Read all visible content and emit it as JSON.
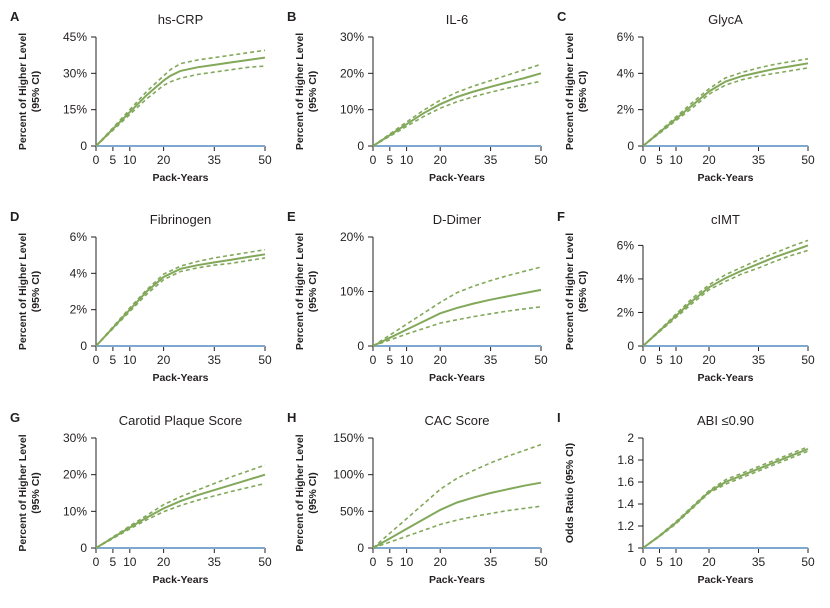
{
  "colors": {
    "curve": "#82a85a",
    "baseline": "#7fa8cf"
  },
  "chart_data": [
    {
      "panel": "A",
      "type": "line",
      "title": "hs-CRP",
      "xlabel": "Pack-Years",
      "ylabel": "Percent of Higher Level (95% CI)",
      "xticks": [
        0,
        5,
        10,
        20,
        35,
        50
      ],
      "xlim": [
        0,
        50
      ],
      "yticks": [
        0,
        15,
        30,
        45
      ],
      "ytick_labels": [
        "0",
        "15%",
        "30%",
        "45%"
      ],
      "ylim": [
        0,
        45
      ],
      "baseline": 0,
      "x": [
        0,
        5,
        10,
        15,
        20,
        22,
        25,
        30,
        35,
        40,
        45,
        50
      ],
      "series": [
        {
          "role": "estimate",
          "values": [
            0,
            7,
            14,
            21,
            27,
            29,
            31,
            32.5,
            33.5,
            34.5,
            35.5,
            36.5
          ]
        },
        {
          "role": "upper_ci",
          "values": [
            0,
            7.5,
            15,
            22.5,
            29,
            31.5,
            34,
            35.5,
            36.5,
            37.5,
            38.5,
            39.5
          ]
        },
        {
          "role": "lower_ci",
          "values": [
            0,
            6.5,
            13,
            19.5,
            25,
            26.5,
            28,
            29.5,
            30.5,
            31.5,
            32.5,
            33
          ]
        }
      ]
    },
    {
      "panel": "B",
      "type": "line",
      "title": "IL-6",
      "xlabel": "Pack-Years",
      "ylabel": "Percent of Higher Level (95% CI)",
      "xticks": [
        0,
        5,
        10,
        20,
        35,
        50
      ],
      "xlim": [
        0,
        50
      ],
      "yticks": [
        0,
        10,
        20,
        30
      ],
      "ytick_labels": [
        "0",
        "10%",
        "20%",
        "30%"
      ],
      "ylim": [
        0,
        30
      ],
      "baseline": 0,
      "x": [
        0,
        5,
        10,
        15,
        20,
        25,
        30,
        35,
        40,
        45,
        50
      ],
      "series": [
        {
          "role": "estimate",
          "values": [
            0,
            3,
            6,
            9,
            11.5,
            13.5,
            15,
            16.3,
            17.5,
            18.7,
            20
          ]
        },
        {
          "role": "upper_ci",
          "values": [
            0,
            3.3,
            6.6,
            9.8,
            12.6,
            14.8,
            16.5,
            18,
            19.5,
            21,
            22.5
          ]
        },
        {
          "role": "lower_ci",
          "values": [
            0,
            2.7,
            5.4,
            8.1,
            10.4,
            12.2,
            13.6,
            14.8,
            15.9,
            16.9,
            17.8
          ]
        }
      ]
    },
    {
      "panel": "C",
      "type": "line",
      "title": "GlycA",
      "xlabel": "Pack-Years",
      "ylabel": "Percent of Higher Level (95% CI)",
      "xticks": [
        0,
        5,
        10,
        20,
        35,
        50
      ],
      "xlim": [
        0,
        50
      ],
      "yticks": [
        0,
        2,
        4,
        6
      ],
      "ytick_labels": [
        "0",
        "2%",
        "4%",
        "6%"
      ],
      "ylim": [
        0,
        6
      ],
      "baseline": 0,
      "x": [
        0,
        5,
        10,
        15,
        20,
        25,
        30,
        35,
        40,
        45,
        50
      ],
      "series": [
        {
          "role": "estimate",
          "values": [
            0,
            0.75,
            1.5,
            2.25,
            3,
            3.55,
            3.85,
            4.05,
            4.25,
            4.4,
            4.55
          ]
        },
        {
          "role": "upper_ci",
          "values": [
            0,
            0.8,
            1.6,
            2.4,
            3.15,
            3.75,
            4.05,
            4.3,
            4.5,
            4.65,
            4.8
          ]
        },
        {
          "role": "lower_ci",
          "values": [
            0,
            0.7,
            1.4,
            2.1,
            2.85,
            3.35,
            3.65,
            3.85,
            4,
            4.15,
            4.3
          ]
        }
      ]
    },
    {
      "panel": "D",
      "type": "line",
      "title": "Fibrinogen",
      "xlabel": "Pack-Years",
      "ylabel": "Percent of Higher Level (95% CI)",
      "xticks": [
        0,
        5,
        10,
        20,
        35,
        50
      ],
      "xlim": [
        0,
        50
      ],
      "yticks": [
        0,
        2,
        4,
        6
      ],
      "ytick_labels": [
        "0",
        "2%",
        "4%",
        "6%"
      ],
      "ylim": [
        0,
        6
      ],
      "baseline": 0,
      "x": [
        0,
        5,
        10,
        15,
        20,
        25,
        30,
        35,
        40,
        45,
        50
      ],
      "series": [
        {
          "role": "estimate",
          "values": [
            0,
            1,
            2,
            3,
            3.8,
            4.25,
            4.45,
            4.6,
            4.75,
            4.9,
            5.05
          ]
        },
        {
          "role": "upper_ci",
          "values": [
            0,
            1.05,
            2.1,
            3.1,
            3.95,
            4.4,
            4.65,
            4.85,
            5,
            5.15,
            5.3
          ]
        },
        {
          "role": "lower_ci",
          "values": [
            0,
            0.95,
            1.9,
            2.85,
            3.65,
            4.1,
            4.3,
            4.45,
            4.55,
            4.7,
            4.85
          ]
        }
      ]
    },
    {
      "panel": "E",
      "type": "line",
      "title": "D-Dimer",
      "xlabel": "Pack-Years",
      "ylabel": "Percent of Higher Level (95% CI)",
      "xticks": [
        0,
        5,
        10,
        20,
        35,
        50
      ],
      "xlim": [
        0,
        50
      ],
      "yticks": [
        0,
        10,
        20
      ],
      "ytick_labels": [
        "0",
        "10%",
        "20%"
      ],
      "ylim": [
        0,
        20
      ],
      "baseline": 0,
      "x": [
        0,
        5,
        10,
        15,
        20,
        25,
        30,
        35,
        40,
        45,
        50
      ],
      "series": [
        {
          "role": "estimate",
          "values": [
            0,
            1.5,
            3,
            4.5,
            6,
            7,
            7.8,
            8.5,
            9.1,
            9.7,
            10.3
          ]
        },
        {
          "role": "upper_ci",
          "values": [
            0,
            2,
            4,
            6,
            8,
            9.8,
            11,
            12,
            12.9,
            13.7,
            14.5
          ]
        },
        {
          "role": "lower_ci",
          "values": [
            0,
            1.1,
            2.2,
            3.2,
            4.2,
            4.8,
            5.4,
            5.9,
            6.4,
            6.8,
            7.2
          ]
        }
      ]
    },
    {
      "panel": "F",
      "type": "line",
      "title": "cIMT",
      "xlabel": "Pack-Years",
      "ylabel": "Percent of Higher Level (95% CI)",
      "xticks": [
        0,
        5,
        10,
        20,
        35,
        50
      ],
      "xlim": [
        0,
        50
      ],
      "yticks": [
        0,
        2,
        4,
        6
      ],
      "ytick_labels": [
        "0",
        "2%",
        "4%",
        "6%"
      ],
      "ylim": [
        0,
        6.5
      ],
      "baseline": 0,
      "x": [
        0,
        5,
        10,
        15,
        20,
        25,
        30,
        35,
        40,
        45,
        50
      ],
      "series": [
        {
          "role": "estimate",
          "values": [
            0,
            0.9,
            1.8,
            2.7,
            3.5,
            4.05,
            4.5,
            4.9,
            5.3,
            5.65,
            6
          ]
        },
        {
          "role": "upper_ci",
          "values": [
            0,
            0.95,
            1.9,
            2.85,
            3.65,
            4.25,
            4.7,
            5.15,
            5.55,
            5.95,
            6.3
          ]
        },
        {
          "role": "lower_ci",
          "values": [
            0,
            0.85,
            1.7,
            2.55,
            3.35,
            3.85,
            4.3,
            4.65,
            5.05,
            5.4,
            5.7
          ]
        }
      ]
    },
    {
      "panel": "G",
      "type": "line",
      "title": "Carotid Plaque Score",
      "xlabel": "Pack-Years",
      "ylabel": "Percent of Higher Level (95% CI)",
      "xticks": [
        0,
        5,
        10,
        20,
        35,
        50
      ],
      "xlim": [
        0,
        50
      ],
      "yticks": [
        0,
        10,
        20,
        30
      ],
      "ytick_labels": [
        "0",
        "10%",
        "20%",
        "30%"
      ],
      "ylim": [
        0,
        30
      ],
      "baseline": 0,
      "x": [
        0,
        5,
        10,
        15,
        20,
        25,
        30,
        35,
        40,
        45,
        50
      ],
      "series": [
        {
          "role": "estimate",
          "values": [
            0,
            2.8,
            5.6,
            8.3,
            10.8,
            12.8,
            14.4,
            15.8,
            17.2,
            18.6,
            20
          ]
        },
        {
          "role": "upper_ci",
          "values": [
            0,
            3,
            6,
            8.9,
            11.8,
            14,
            15.8,
            17.6,
            19.4,
            21,
            22.6
          ]
        },
        {
          "role": "lower_ci",
          "values": [
            0,
            2.6,
            5.2,
            7.7,
            9.9,
            11.6,
            13,
            14.2,
            15.4,
            16.5,
            17.6
          ]
        }
      ]
    },
    {
      "panel": "H",
      "type": "line",
      "title": "CAC Score",
      "xlabel": "Pack-Years",
      "ylabel": "Percent of Higher Level (95% CI)",
      "xticks": [
        0,
        5,
        10,
        20,
        35,
        50
      ],
      "xlim": [
        0,
        50
      ],
      "yticks": [
        0,
        50,
        100,
        150
      ],
      "ytick_labels": [
        "0",
        "50%",
        "100%",
        "150%"
      ],
      "ylim": [
        0,
        150
      ],
      "baseline": 0,
      "x": [
        0,
        5,
        10,
        15,
        20,
        25,
        30,
        35,
        40,
        45,
        50
      ],
      "series": [
        {
          "role": "estimate",
          "values": [
            0,
            13,
            26,
            39,
            52,
            62,
            69,
            75,
            80,
            85,
            89
          ]
        },
        {
          "role": "upper_ci",
          "values": [
            0,
            20,
            40,
            60,
            80,
            95,
            106,
            116,
            125,
            133,
            141
          ]
        },
        {
          "role": "lower_ci",
          "values": [
            0,
            8,
            16,
            24,
            32,
            38,
            43,
            47,
            51,
            54,
            57
          ]
        }
      ]
    },
    {
      "panel": "I",
      "type": "line",
      "title": "ABI ≤0.90",
      "xlabel": "Pack-Years",
      "ylabel": "Odds Ratio (95% CI)",
      "xticks": [
        0,
        5,
        10,
        20,
        35,
        50
      ],
      "xlim": [
        0,
        50
      ],
      "yticks": [
        1,
        1.2,
        1.4,
        1.6,
        1.8,
        2
      ],
      "ytick_labels": [
        "1",
        "1.2",
        "1.4",
        "1.6",
        "1.8",
        "2"
      ],
      "ylim": [
        1,
        2
      ],
      "baseline": 1,
      "x": [
        0,
        5,
        10,
        15,
        20,
        25,
        30,
        35,
        40,
        45,
        50
      ],
      "series": [
        {
          "role": "estimate",
          "values": [
            1,
            1.11,
            1.23,
            1.37,
            1.51,
            1.6,
            1.66,
            1.72,
            1.78,
            1.84,
            1.9
          ]
        },
        {
          "role": "upper_ci",
          "values": [
            1,
            1.115,
            1.24,
            1.38,
            1.52,
            1.62,
            1.68,
            1.74,
            1.8,
            1.86,
            1.92
          ]
        },
        {
          "role": "lower_ci",
          "values": [
            1,
            1.105,
            1.22,
            1.36,
            1.5,
            1.58,
            1.64,
            1.7,
            1.76,
            1.82,
            1.88
          ]
        }
      ]
    }
  ]
}
